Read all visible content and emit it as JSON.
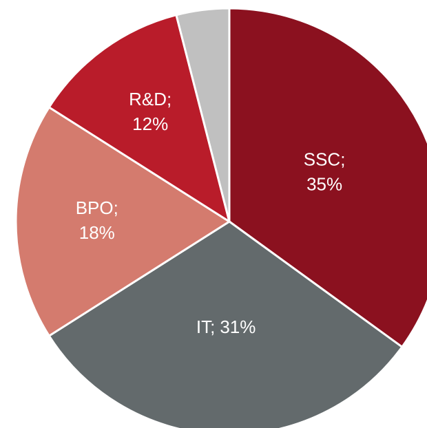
{
  "chart_data": {
    "type": "pie",
    "categories": [
      "SSC;",
      "IT;",
      "BPO;",
      "R&D;",
      null
    ],
    "values": [
      35,
      31,
      18,
      12,
      4
    ],
    "value_labels": [
      "35%",
      "31%",
      "18%",
      "12%",
      null
    ],
    "colors": [
      "#8b111f",
      "#636a6c",
      "#d47b6e",
      "#b91c2a",
      "#c0c0c0"
    ]
  }
}
